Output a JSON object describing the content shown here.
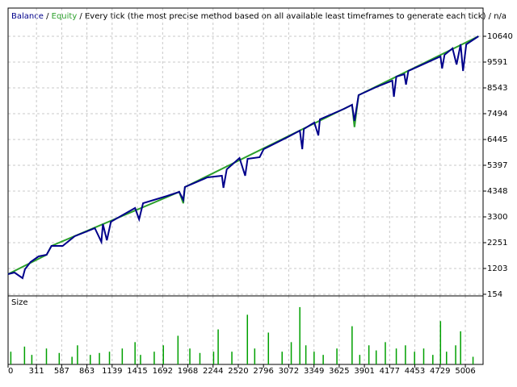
{
  "chart_data": [
    {
      "type": "line",
      "subtitle": "Every tick (the most precise method based on all available least timeframes to generate each tick)",
      "status": "n/a",
      "separator": " / ",
      "ylim": [
        88,
        11787
      ],
      "yticks": [
        154,
        1203,
        2251,
        3300,
        4348,
        5397,
        6445,
        7494,
        8543,
        9591,
        10640
      ],
      "grid": true,
      "series": [
        {
          "name": "Balance",
          "color": "#00008b",
          "x": [
            0,
            70,
            158,
            185,
            246,
            334,
            422,
            475,
            598,
            730,
            862,
            950,
            1021,
            1038,
            1082,
            1126,
            1390,
            1434,
            1478,
            1742,
            1874,
            1918,
            1936,
            2182,
            2341,
            2358,
            2394,
            2534,
            2596,
            2622,
            2754,
            2798,
            3062,
            3194,
            3221,
            3238,
            3353,
            3397,
            3414,
            3678,
            3766,
            3792,
            3837,
            4030,
            4206,
            4224,
            4250,
            4338,
            4356,
            4382,
            4734,
            4752,
            4778,
            4866,
            4910,
            4954,
            4981,
            5016,
            5150
          ],
          "values": [
            973,
            1039,
            810,
            1170,
            1465,
            1694,
            1760,
            2120,
            2120,
            2514,
            2710,
            2841,
            2284,
            3005,
            2350,
            3103,
            3660,
            3201,
            3857,
            4152,
            4316,
            3988,
            4512,
            4906,
            4971,
            4480,
            5233,
            5692,
            4971,
            5659,
            5725,
            6052,
            6544,
            6806,
            6052,
            6872,
            7134,
            6610,
            7265,
            7691,
            7855,
            7200,
            8248,
            8576,
            8838,
            8183,
            9002,
            9100,
            8674,
            9231,
            9821,
            9330,
            9887,
            10149,
            9494,
            10313,
            9231,
            10313,
            10640
          ]
        },
        {
          "name": "Equity",
          "color": "#2ca02c",
          "x": [
            0,
            422,
            475,
            1874,
            1918,
            1936,
            3766,
            3792,
            3837,
            5150
          ],
          "values": [
            973,
            1760,
            2120,
            4316,
            3850,
            4512,
            7855,
            6950,
            8248,
            10640
          ]
        }
      ]
    },
    {
      "type": "bar",
      "title": "Size",
      "color": "#00a000",
      "xlim": [
        0,
        5200
      ],
      "xticks": [
        0,
        311,
        587,
        863,
        1139,
        1415,
        1692,
        1968,
        2244,
        2520,
        2796,
        3072,
        3349,
        3625,
        3901,
        4177,
        4453,
        4729,
        5006
      ],
      "ylim": [
        0,
        1
      ],
      "x": [
        30,
        180,
        260,
        420,
        560,
        700,
        760,
        900,
        1000,
        1110,
        1250,
        1390,
        1450,
        1600,
        1700,
        1860,
        1990,
        2100,
        2250,
        2300,
        2450,
        2620,
        2700,
        2850,
        3000,
        3100,
        3194,
        3260,
        3350,
        3450,
        3600,
        3766,
        3850,
        3950,
        4030,
        4130,
        4250,
        4350,
        4450,
        4550,
        4650,
        4734,
        4800,
        4900,
        4954,
        5090
      ],
      "values": [
        0.2,
        0.28,
        0.15,
        0.25,
        0.18,
        0.12,
        0.3,
        0.15,
        0.18,
        0.2,
        0.25,
        0.35,
        0.15,
        0.2,
        0.3,
        0.45,
        0.25,
        0.18,
        0.2,
        0.55,
        0.2,
        0.78,
        0.25,
        0.5,
        0.2,
        0.35,
        0.9,
        0.3,
        0.2,
        0.15,
        0.25,
        0.6,
        0.15,
        0.3,
        0.22,
        0.35,
        0.25,
        0.3,
        0.2,
        0.25,
        0.15,
        0.68,
        0.2,
        0.3,
        0.52,
        0.12
      ]
    }
  ]
}
